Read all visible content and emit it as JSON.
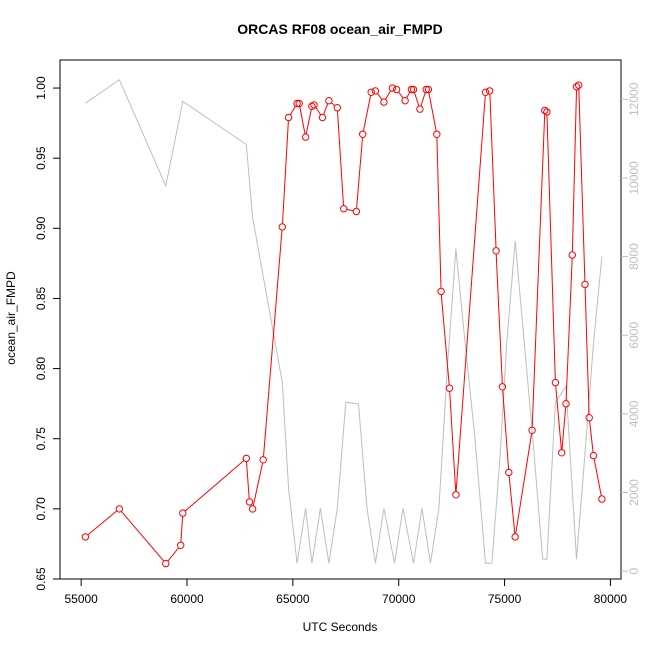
{
  "chart_data": {
    "type": "line",
    "title": "ORCAS RF08 ocean_air_FMPD",
    "xlabel": "UTC Seconds",
    "ylabel": "ocean_air_FMPD",
    "xlim": [
      54000,
      80500
    ],
    "ylim": [
      0.65,
      1.02
    ],
    "y2lim": [
      -200,
      13000
    ],
    "x_ticks": [
      55000,
      60000,
      65000,
      70000,
      75000,
      80000
    ],
    "x_tick_labels": [
      "55000",
      "60000",
      "65000",
      "70000",
      "75000",
      "80000"
    ],
    "y_ticks": [
      0.65,
      0.7,
      0.75,
      0.8,
      0.85,
      0.9,
      0.95,
      1.0
    ],
    "y_tick_labels": [
      "0.65",
      "0.70",
      "0.75",
      "0.80",
      "0.85",
      "0.90",
      "0.95",
      "1.00"
    ],
    "y2_ticks": [
      0,
      2000,
      4000,
      6000,
      8000,
      10000,
      12000
    ],
    "y2_tick_labels": [
      "0",
      "2000",
      "4000",
      "6000",
      "8000",
      "10000",
      "12000"
    ],
    "colors": {
      "primary": "#ff0000",
      "secondary": "#bebebe",
      "axes": "#000000"
    },
    "series": [
      {
        "axis": "left",
        "style": "line+markers",
        "x": [
          55200,
          56800,
          59000,
          59700,
          59800,
          62800,
          62950,
          63100,
          63600,
          64500,
          64800,
          65200,
          65300,
          65600,
          65900,
          66000,
          66400,
          66700,
          67100,
          67400,
          68000,
          68300,
          68700,
          68900,
          69300,
          69700,
          69900,
          70300,
          70600,
          70700,
          71000,
          71300,
          71400,
          71800,
          72000,
          72400,
          72700,
          74100,
          74300,
          74600,
          74900,
          75200,
          75500,
          76300,
          76900,
          77000,
          77400,
          77700,
          77900,
          78200,
          78400,
          78500,
          78800,
          79000,
          79200,
          79600
        ],
        "y": [
          0.68,
          0.7,
          0.661,
          0.674,
          0.697,
          0.736,
          0.705,
          0.7,
          0.735,
          0.901,
          0.979,
          0.989,
          0.989,
          0.965,
          0.987,
          0.988,
          0.979,
          0.991,
          0.986,
          0.914,
          0.912,
          0.967,
          0.997,
          0.998,
          0.99,
          1.0,
          0.999,
          0.991,
          0.999,
          0.999,
          0.985,
          0.999,
          0.999,
          0.967,
          0.855,
          0.786,
          0.71,
          0.997,
          0.998,
          0.884,
          0.787,
          0.726,
          0.68,
          0.756,
          0.984,
          0.983,
          0.79,
          0.74,
          0.775,
          0.881,
          1.001,
          1.002,
          0.86,
          0.765,
          0.738,
          0.707
        ]
      },
      {
        "axis": "right",
        "style": "line",
        "x": [
          55200,
          56800,
          59000,
          59800,
          62800,
          63100,
          64000,
          64500,
          64800,
          65200,
          65600,
          65900,
          66300,
          66700,
          67100,
          67500,
          68100,
          68500,
          68900,
          69300,
          69800,
          70200,
          70700,
          71100,
          71500,
          71900,
          72300,
          72700,
          73100,
          73600,
          74100,
          74400,
          74800,
          75100,
          75500,
          75900,
          76300,
          76800,
          77000,
          77400,
          77900,
          78400,
          78800,
          79200,
          79600
        ],
        "y": [
          11900,
          12500,
          9800,
          11950,
          10850,
          9000,
          6300,
          4800,
          2100,
          200,
          1600,
          200,
          1600,
          200,
          1600,
          4300,
          4250,
          1600,
          200,
          1600,
          200,
          1600,
          200,
          1600,
          200,
          1600,
          5200,
          8200,
          6000,
          3400,
          200,
          200,
          3000,
          5800,
          8400,
          6000,
          3600,
          300,
          300,
          4300,
          4700,
          300,
          3000,
          5800,
          8000
        ]
      }
    ]
  }
}
